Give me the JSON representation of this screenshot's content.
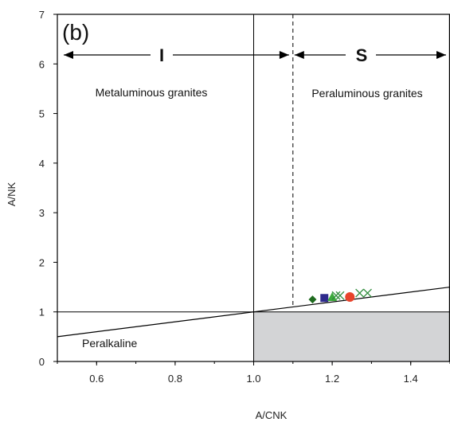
{
  "chart_data": {
    "type": "scatter",
    "panel_label": "(b)",
    "xlabel": "A/CNK",
    "ylabel": "A/NK",
    "xlim": [
      0.5,
      1.5
    ],
    "ylim": [
      0,
      7
    ],
    "x_ticks": [
      "0.6",
      "0.8",
      "1.0",
      "1.2",
      "1.4"
    ],
    "y_ticks": [
      "0",
      "1",
      "2",
      "3",
      "4",
      "5",
      "6",
      "7"
    ],
    "regions": {
      "metaluminous": "Metaluminous granites",
      "peraluminous": "Peraluminous granites",
      "peralkaline": "Peralkaline"
    },
    "granite_types": {
      "i_type": "I",
      "s_type": "S"
    },
    "colors": {
      "shaded_region": "#d3d4d6",
      "diamond": "#1f6b1f",
      "square": "#2e2a8c",
      "triangle": "#3caa3c",
      "circle": "#e8432b",
      "cross": "#2e8b3a"
    },
    "series": [
      {
        "marker": "diamond",
        "points": [
          [
            1.15,
            1.25
          ]
        ]
      },
      {
        "marker": "square",
        "points": [
          [
            1.18,
            1.28
          ]
        ]
      },
      {
        "marker": "triangle",
        "points": [
          [
            1.2,
            1.3
          ]
        ]
      },
      {
        "marker": "cross",
        "points": [
          [
            1.21,
            1.33
          ],
          [
            1.22,
            1.33
          ]
        ]
      },
      {
        "marker": "circle",
        "points": [
          [
            1.245,
            1.3
          ]
        ]
      },
      {
        "marker": "cross",
        "points": [
          [
            1.27,
            1.38
          ],
          [
            1.29,
            1.38
          ]
        ]
      }
    ]
  }
}
